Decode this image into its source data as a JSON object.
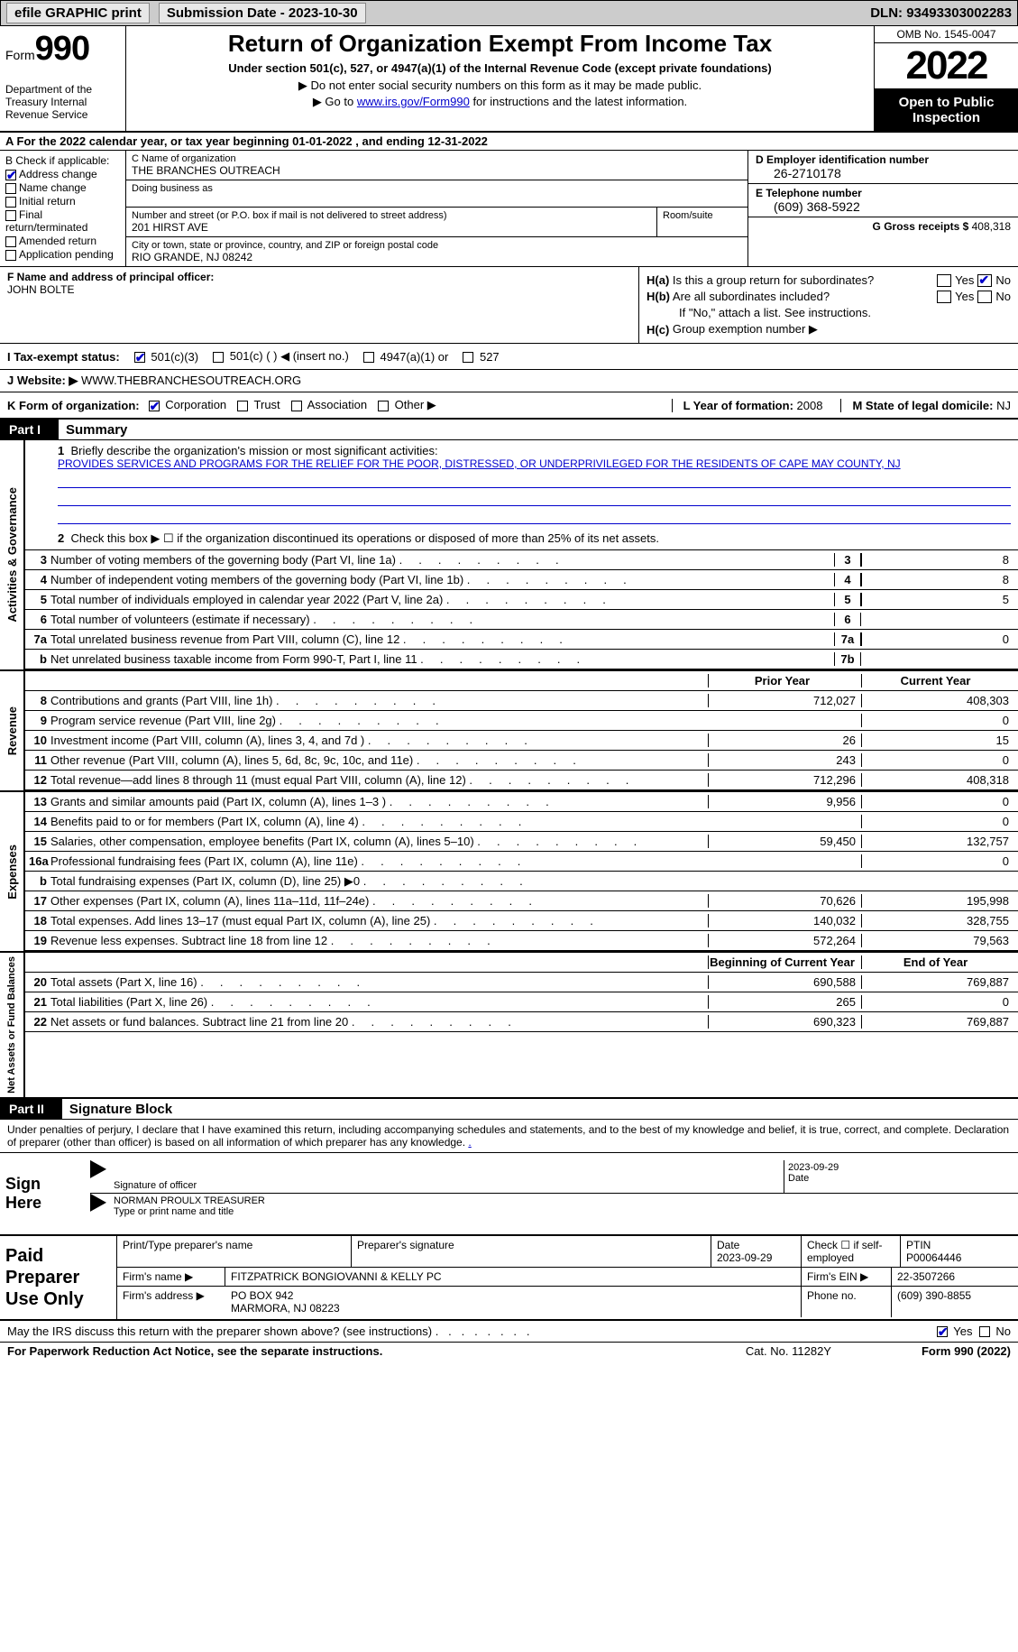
{
  "topbar": {
    "efile_label": "efile GRAPHIC print",
    "submission_label": "Submission Date - 2023-10-30",
    "dln": "DLN: 93493303002283"
  },
  "header": {
    "form_label": "Form",
    "form_number": "990",
    "dept": "Department of the Treasury Internal Revenue Service",
    "title": "Return of Organization Exempt From Income Tax",
    "subtitle": "Under section 501(c), 527, or 4947(a)(1) of the Internal Revenue Code (except private foundations)",
    "note1": "▶ Do not enter social security numbers on this form as it may be made public.",
    "note2_pre": "▶ Go to ",
    "note2_link": "www.irs.gov/Form990",
    "note2_post": " for instructions and the latest information.",
    "omb": "OMB No. 1545-0047",
    "year": "2022",
    "inspect": "Open to Public Inspection"
  },
  "row_a": "A  For the 2022 calendar year, or tax year beginning 01-01-2022    , and ending 12-31-2022",
  "box_b": {
    "label": "B Check if applicable:",
    "items": [
      {
        "label": "Address change",
        "checked": true
      },
      {
        "label": "Name change",
        "checked": false
      },
      {
        "label": "Initial return",
        "checked": false
      },
      {
        "label": "Final return/terminated",
        "checked": false
      },
      {
        "label": "Amended return",
        "checked": false
      },
      {
        "label": "Application pending",
        "checked": false
      }
    ]
  },
  "box_c": {
    "name_label": "C Name of organization",
    "name": "THE BRANCHES OUTREACH",
    "dba_label": "Doing business as",
    "addr_label": "Number and street (or P.O. box if mail is not delivered to street address)",
    "addr": "201 HIRST AVE",
    "room_label": "Room/suite",
    "city_label": "City or town, state or province, country, and ZIP or foreign postal code",
    "city": "RIO GRANDE, NJ  08242"
  },
  "box_d": {
    "ein_label": "D Employer identification number",
    "ein": "26-2710178",
    "phone_label": "E Telephone number",
    "phone": "(609) 368-5922",
    "gross_label": "G Gross receipts $",
    "gross": "408,318"
  },
  "box_f": {
    "label": "F Name and address of principal officer:",
    "name": "JOHN BOLTE"
  },
  "box_h": {
    "a_label": "H(a)  Is this a group return for subordinates?",
    "a_yes": "Yes",
    "a_no": "No",
    "b_label": "H(b)  Are all subordinates included?",
    "b_note": "If \"No,\" attach a list. See instructions.",
    "c_label": "H(c)  Group exemption number ▶"
  },
  "tax_status": {
    "label": "I    Tax-exempt status:",
    "opt1": "501(c)(3)",
    "opt2": "501(c) (  ) ◀ (insert no.)",
    "opt3": "4947(a)(1) or",
    "opt4": "527"
  },
  "website": {
    "label": "J    Website: ▶",
    "value": "WWW.THEBRANCHESOUTREACH.ORG"
  },
  "box_k": {
    "label": "K Form of organization:",
    "opts": [
      "Corporation",
      "Trust",
      "Association",
      "Other ▶"
    ],
    "checked": 0,
    "l_label": "L Year of formation:",
    "l_val": "2008",
    "m_label": "M State of legal domicile:",
    "m_val": "NJ"
  },
  "parts": {
    "p1": "Part I",
    "p1_title": "Summary",
    "p2": "Part II",
    "p2_title": "Signature Block"
  },
  "summary": {
    "line1_label": "1  Briefly describe the organization's mission or most significant activities:",
    "mission": "PROVIDES SERVICES AND PROGRAMS FOR THE RELIEF FOR THE POOR, DISTRESSED, OR UNDERPRIVILEGED FOR THE RESIDENTS OF CAPE MAY COUNTY, NJ",
    "line2": "Check this box ▶ ☐  if the organization discontinued its operations or disposed of more than 25% of its net assets.",
    "vlabels": {
      "ag": "Activities & Governance",
      "rev": "Revenue",
      "exp": "Expenses",
      "net": "Net Assets or Fund Balances"
    },
    "prior_label": "Prior Year",
    "current_label": "Current Year",
    "begin_label": "Beginning of Current Year",
    "end_label": "End of Year",
    "rows_ag": [
      {
        "n": "3",
        "d": "Number of voting members of the governing body (Part VI, line 1a)",
        "box": "3",
        "v2": "8"
      },
      {
        "n": "4",
        "d": "Number of independent voting members of the governing body (Part VI, line 1b)",
        "box": "4",
        "v2": "8"
      },
      {
        "n": "5",
        "d": "Total number of individuals employed in calendar year 2022 (Part V, line 2a)",
        "box": "5",
        "v2": "5"
      },
      {
        "n": "6",
        "d": "Total number of volunteers (estimate if necessary)",
        "box": "6",
        "v2": ""
      },
      {
        "n": "7a",
        "d": "Total unrelated business revenue from Part VIII, column (C), line 12",
        "box": "7a",
        "v2": "0"
      },
      {
        "n": "b",
        "d": "Net unrelated business taxable income from Form 990-T, Part I, line 11",
        "box": "7b",
        "v2": ""
      }
    ],
    "rows_rev": [
      {
        "n": "8",
        "d": "Contributions and grants (Part VIII, line 1h)",
        "v1": "712,027",
        "v2": "408,303"
      },
      {
        "n": "9",
        "d": "Program service revenue (Part VIII, line 2g)",
        "v1": "",
        "v2": "0"
      },
      {
        "n": "10",
        "d": "Investment income (Part VIII, column (A), lines 3, 4, and 7d )",
        "v1": "26",
        "v2": "15"
      },
      {
        "n": "11",
        "d": "Other revenue (Part VIII, column (A), lines 5, 6d, 8c, 9c, 10c, and 11e)",
        "v1": "243",
        "v2": "0"
      },
      {
        "n": "12",
        "d": "Total revenue—add lines 8 through 11 (must equal Part VIII, column (A), line 12)",
        "v1": "712,296",
        "v2": "408,318"
      }
    ],
    "rows_exp": [
      {
        "n": "13",
        "d": "Grants and similar amounts paid (Part IX, column (A), lines 1–3 )",
        "v1": "9,956",
        "v2": "0"
      },
      {
        "n": "14",
        "d": "Benefits paid to or for members (Part IX, column (A), line 4)",
        "v1": "",
        "v2": "0"
      },
      {
        "n": "15",
        "d": "Salaries, other compensation, employee benefits (Part IX, column (A), lines 5–10)",
        "v1": "59,450",
        "v2": "132,757"
      },
      {
        "n": "16a",
        "d": "Professional fundraising fees (Part IX, column (A), line 11e)",
        "v1": "",
        "v2": "0"
      },
      {
        "n": "b",
        "d": "Total fundraising expenses (Part IX, column (D), line 25) ▶0",
        "v1": "shade",
        "v2": "shade"
      },
      {
        "n": "17",
        "d": "Other expenses (Part IX, column (A), lines 11a–11d, 11f–24e)",
        "v1": "70,626",
        "v2": "195,998"
      },
      {
        "n": "18",
        "d": "Total expenses. Add lines 13–17 (must equal Part IX, column (A), line 25)",
        "v1": "140,032",
        "v2": "328,755"
      },
      {
        "n": "19",
        "d": "Revenue less expenses. Subtract line 18 from line 12",
        "v1": "572,264",
        "v2": "79,563"
      }
    ],
    "rows_net": [
      {
        "n": "20",
        "d": "Total assets (Part X, line 16)",
        "v1": "690,588",
        "v2": "769,887"
      },
      {
        "n": "21",
        "d": "Total liabilities (Part X, line 26)",
        "v1": "265",
        "v2": "0"
      },
      {
        "n": "22",
        "d": "Net assets or fund balances. Subtract line 21 from line 20",
        "v1": "690,323",
        "v2": "769,887"
      }
    ]
  },
  "sig": {
    "intro": "Under penalties of perjury, I declare that I have examined this return, including accompanying schedules and statements, and to the best of my knowledge and belief, it is true, correct, and complete. Declaration of preparer (other than officer) is based on all information of which preparer has any knowledge.",
    "sign_here": "Sign Here",
    "sig_officer": "Signature of officer",
    "date": "Date",
    "date_val": "2023-09-29",
    "name_title": "Type or print name and title",
    "name_val": "NORMAN PROULX TREASURER"
  },
  "prep": {
    "label": "Paid Preparer Use Only",
    "r1": {
      "a": "Print/Type preparer's name",
      "b": "Preparer's signature",
      "c": "Date\n2023-09-29",
      "d": "Check ☐ if self-employed",
      "e": "PTIN\nP00064446"
    },
    "r2": {
      "a": "Firm's name    ▶",
      "b": "FITZPATRICK BONGIOVANNI & KELLY PC",
      "c": "Firm's EIN ▶",
      "d": "22-3507266"
    },
    "r3": {
      "a": "Firm's address ▶",
      "b": "PO BOX 942",
      "c": "Phone no.",
      "d": "(609) 390-8855"
    },
    "r3b": "MARMORA, NJ  08223"
  },
  "footer": {
    "q": "May the IRS discuss this return with the preparer shown above? (see instructions)",
    "yes": "Yes",
    "no": "No",
    "paperwork": "For Paperwork Reduction Act Notice, see the separate instructions.",
    "cat": "Cat. No. 11282Y",
    "form": "Form 990 (2022)"
  },
  "colors": {
    "link": "#0000cc",
    "fill": "#0000cc"
  }
}
